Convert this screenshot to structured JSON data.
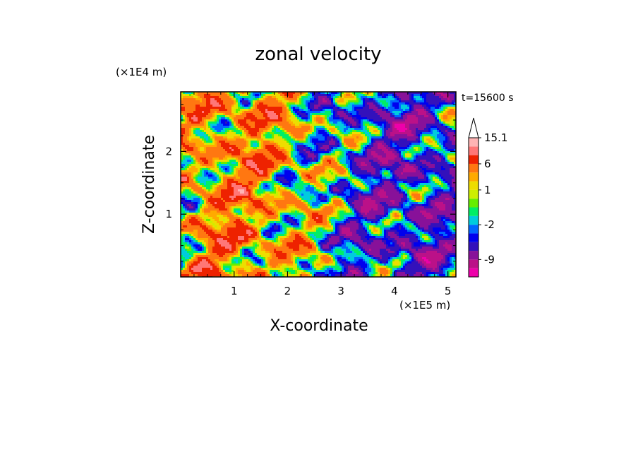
{
  "chart_data": {
    "type": "heatmap",
    "title": "zonal velocity",
    "xlabel": "X-coordinate",
    "ylabel": "Z-coordinate",
    "x_multiplier": "(×1E5 m)",
    "y_multiplier": "(×1E4 m)",
    "time_label": "t=15600 s",
    "xlim": [
      0,
      5.15
    ],
    "ylim": [
      0,
      2.95
    ],
    "x_ticks": [
      1,
      2,
      3,
      4,
      5
    ],
    "y_ticks": [
      1,
      2
    ],
    "colorbar": {
      "levels": [
        -15,
        -12,
        -9,
        -6,
        -4,
        -3,
        -2,
        -1,
        0,
        0.5,
        1,
        2,
        3,
        6,
        9,
        12,
        15.1
      ],
      "colors": [
        "#ee00aa",
        "#bb1188",
        "#881199",
        "#3311bb",
        "#0000ee",
        "#0066ff",
        "#00ccdd",
        "#00ee66",
        "#66ee00",
        "#ccee00",
        "#eedd00",
        "#ffaa00",
        "#ff7711",
        "#ee2200",
        "#ff7777",
        "#ffb4b4"
      ],
      "tick_labels": [
        "15.1",
        "6",
        "1",
        "-2",
        "-9"
      ],
      "extend": "max"
    }
  }
}
